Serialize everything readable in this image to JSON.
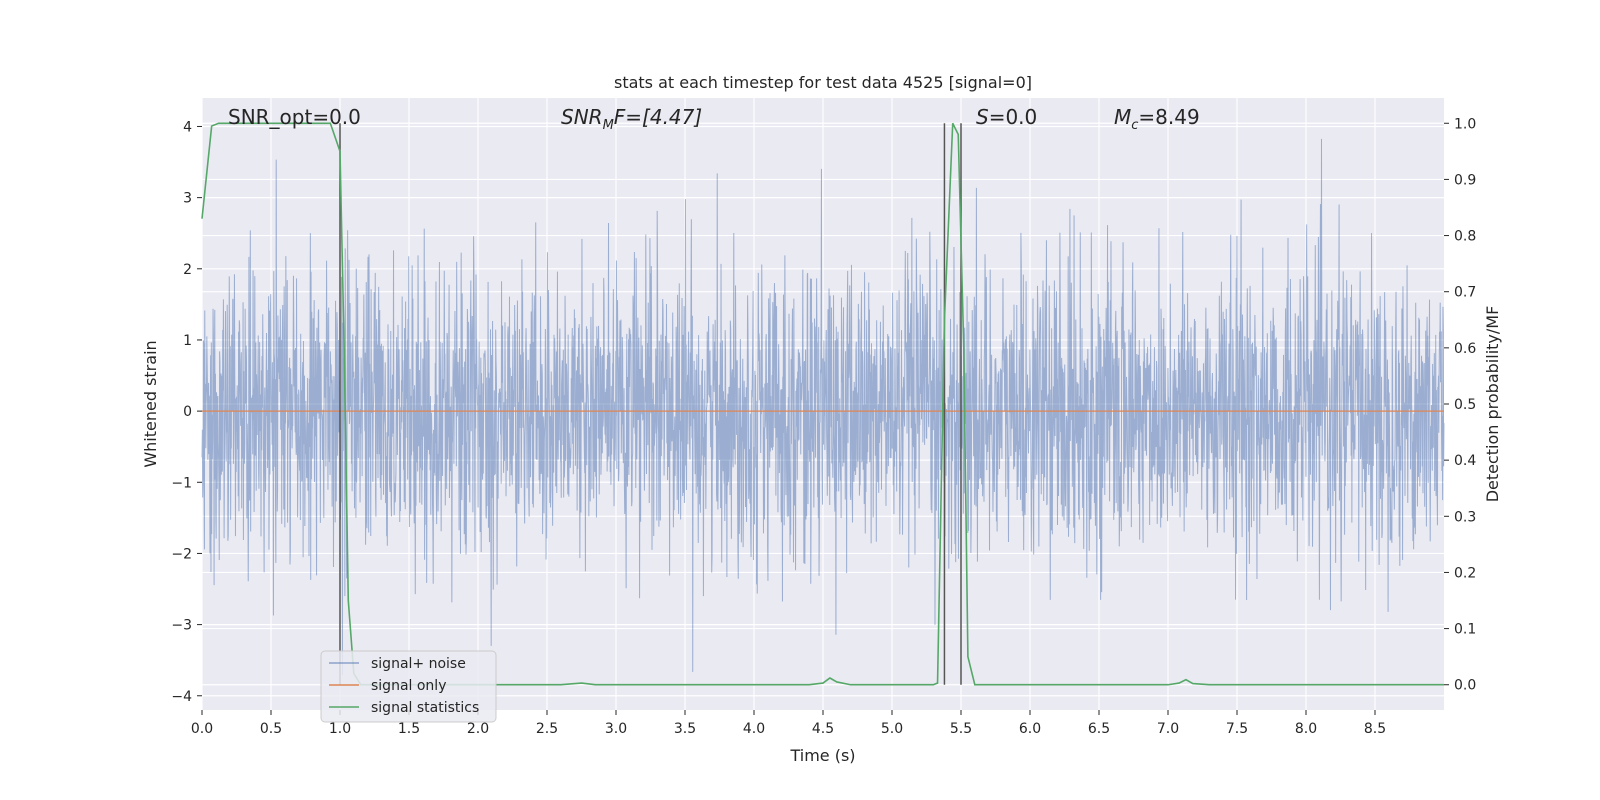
{
  "chart_data": {
    "type": "line",
    "title": "stats at each timestep for test data 4525 [signal=0]",
    "xlabel": "Time (s)",
    "ylabel": "Whitened strain",
    "y2label": "Detection probability/MF",
    "xlim": [
      0.0,
      9.0
    ],
    "ylim": [
      -4.2,
      4.4
    ],
    "y2lim": [
      -0.045,
      1.045
    ],
    "x_ticks": [
      "0.0",
      "0.5",
      "1.0",
      "1.5",
      "2.0",
      "2.5",
      "3.0",
      "3.5",
      "4.0",
      "4.5",
      "5.0",
      "5.5",
      "6.0",
      "6.5",
      "7.0",
      "7.5",
      "8.0",
      "8.5"
    ],
    "x_tick_values": [
      0.0,
      0.5,
      1.0,
      1.5,
      2.0,
      2.5,
      3.0,
      3.5,
      4.0,
      4.5,
      5.0,
      5.5,
      6.0,
      6.5,
      7.0,
      7.5,
      8.0,
      8.5
    ],
    "y_ticks": [
      "−4",
      "−3",
      "−2",
      "−1",
      "0",
      "1",
      "2",
      "3",
      "4"
    ],
    "y_tick_values": [
      -4,
      -3,
      -2,
      -1,
      0,
      1,
      2,
      3,
      4
    ],
    "y2_ticks": [
      "0.0",
      "0.1",
      "0.2",
      "0.3",
      "0.4",
      "0.5",
      "0.6",
      "0.7",
      "0.8",
      "0.9",
      "1.0"
    ],
    "y2_tick_values": [
      0.0,
      0.1,
      0.2,
      0.3,
      0.4,
      0.5,
      0.6,
      0.7,
      0.8,
      0.9,
      1.0
    ],
    "grid": true,
    "legend_placement": "lower-left",
    "annotations": {
      "snr_opt": "SNR_opt=0.0",
      "snr_mf_base": "SNR",
      "snr_mf_sub": "M",
      "snr_mf_rest": "F=[4.47]",
      "s_var": "S",
      "s_rest": "=0.0",
      "mc_base": "M",
      "mc_sub": "c",
      "mc_rest": "=8.49"
    },
    "vlines_x": [
      1.0,
      5.38,
      5.5
    ],
    "series": [
      {
        "name": "signal+ noise",
        "color": "#4c72b0",
        "note_style": "dense noise, approx. std 1.0, range about -3.8 to 4.0",
        "std": 1.0
      },
      {
        "name": "signal only",
        "color": "#dd8452",
        "x": [
          0.0,
          9.0
        ],
        "y": [
          0.0,
          0.0
        ]
      },
      {
        "name": "signal statistics",
        "color": "#55a868",
        "axis": "right",
        "x": [
          0.0,
          0.07,
          0.12,
          0.2,
          0.5,
          0.8,
          0.93,
          1.0,
          1.03,
          1.06,
          1.1,
          1.15,
          1.2,
          2.6,
          2.75,
          2.85,
          4.4,
          4.5,
          4.55,
          4.6,
          4.7,
          5.3,
          5.33,
          5.38,
          5.44,
          5.48,
          5.52,
          5.55,
          5.6,
          5.7,
          7.0,
          7.08,
          7.13,
          7.18,
          7.3,
          9.0
        ],
        "y": [
          0.83,
          0.995,
          1.0,
          1.0,
          1.0,
          1.0,
          1.0,
          0.95,
          0.6,
          0.15,
          0.02,
          0.0,
          0.0,
          0.0,
          0.003,
          0.0,
          0.0,
          0.003,
          0.012,
          0.005,
          0.0,
          0.0,
          0.003,
          0.65,
          1.0,
          0.98,
          0.6,
          0.05,
          0.0,
          0.0,
          0.0,
          0.003,
          0.009,
          0.002,
          0.0,
          0.0
        ]
      }
    ]
  }
}
